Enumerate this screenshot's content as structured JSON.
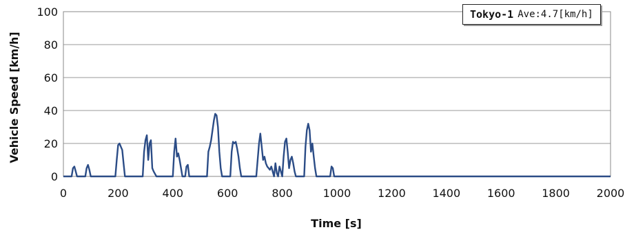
{
  "chart_data": {
    "type": "line",
    "title": "",
    "xlabel": "Time [s]",
    "ylabel": "Vehicle Speed [km/h]",
    "xlim": [
      0,
      2000
    ],
    "ylim": [
      0,
      100
    ],
    "xticks": [
      0,
      200,
      400,
      600,
      800,
      1000,
      1200,
      1400,
      1600,
      1800,
      2000
    ],
    "yticks": [
      0,
      20,
      40,
      60,
      80,
      100
    ],
    "grid": "horizontal",
    "legend_position": "top-right",
    "line_color": "#2b4c86",
    "legend": {
      "name": "Tokyo-1",
      "average": "Ave:4.7[km/h]"
    },
    "series": [
      {
        "name": "Tokyo-1",
        "x": [
          0,
          30,
          35,
          40,
          45,
          50,
          80,
          85,
          90,
          95,
          100,
          190,
          195,
          200,
          205,
          210,
          215,
          220,
          225,
          290,
          295,
          300,
          305,
          310,
          315,
          320,
          325,
          330,
          340,
          400,
          405,
          410,
          415,
          420,
          425,
          430,
          435,
          445,
          450,
          455,
          460,
          525,
          530,
          535,
          540,
          545,
          550,
          555,
          560,
          565,
          570,
          575,
          580,
          610,
          615,
          620,
          625,
          630,
          635,
          640,
          645,
          650,
          705,
          710,
          715,
          720,
          725,
          730,
          735,
          740,
          745,
          750,
          755,
          760,
          765,
          770,
          775,
          780,
          785,
          790,
          795,
          800,
          805,
          810,
          815,
          820,
          825,
          830,
          835,
          840,
          845,
          850,
          855,
          880,
          885,
          890,
          895,
          900,
          905,
          910,
          915,
          920,
          925,
          975,
          980,
          985,
          990,
          1000,
          2000
        ],
        "values": [
          0,
          0,
          5,
          6,
          3,
          0,
          0,
          5,
          7,
          4,
          0,
          0,
          10,
          19,
          20,
          18,
          16,
          8,
          0,
          0,
          15,
          22,
          25,
          10,
          20,
          22,
          5,
          3,
          0,
          0,
          15,
          23,
          12,
          14,
          10,
          5,
          0,
          0,
          6,
          7,
          0,
          0,
          15,
          18,
          22,
          28,
          34,
          38,
          37,
          30,
          15,
          5,
          0,
          0,
          15,
          21,
          20,
          21,
          17,
          12,
          5,
          0,
          0,
          10,
          20,
          26,
          18,
          10,
          12,
          8,
          6,
          5,
          4,
          6,
          3,
          0,
          8,
          2,
          0,
          6,
          3,
          0,
          12,
          21,
          23,
          15,
          5,
          10,
          12,
          8,
          3,
          0,
          0,
          0,
          18,
          28,
          32,
          28,
          15,
          20,
          12,
          5,
          0,
          0,
          6,
          5,
          0,
          0,
          0
        ]
      }
    ]
  }
}
